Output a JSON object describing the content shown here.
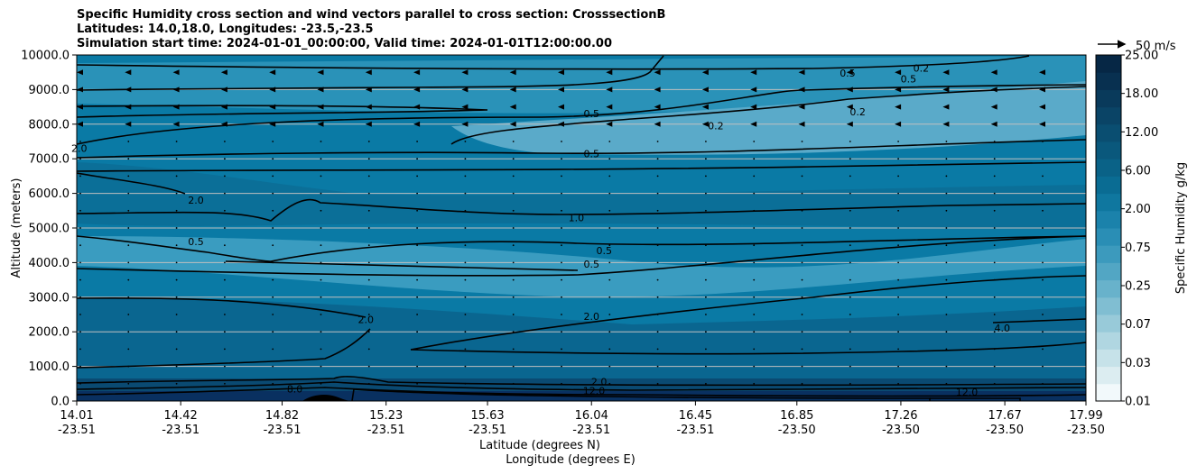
{
  "chart_data": {
    "type": "heatmap",
    "title_lines": [
      "Specific Humidity cross section and wind vectors parallel to cross section: CrosssectionB",
      "Latitudes: 14.0,18.0, Longitudes: -23.5,-23.5",
      "Simulation start time: 2024-01-01_00:00:00, Valid time: 2024-01-01T12:00:00.00"
    ],
    "ylabel": "Altitude (meters)",
    "xlabel_lines": [
      "Latitude (degrees N)",
      "Longitude (degrees E)"
    ],
    "ylim": [
      0,
      10000
    ],
    "y_ticks": [
      "0.0",
      "1000.0",
      "2000.0",
      "3000.0",
      "4000.0",
      "5000.0",
      "6000.0",
      "7000.0",
      "8000.0",
      "9000.0",
      "10000.0"
    ],
    "y_tick_values": [
      0,
      1000,
      2000,
      3000,
      4000,
      5000,
      6000,
      7000,
      8000,
      9000,
      10000
    ],
    "x_ticks": [
      {
        "lat": "14.01",
        "lon": "-23.51"
      },
      {
        "lat": "14.42",
        "lon": "-23.51"
      },
      {
        "lat": "14.82",
        "lon": "-23.51"
      },
      {
        "lat": "15.23",
        "lon": "-23.51"
      },
      {
        "lat": "15.63",
        "lon": "-23.51"
      },
      {
        "lat": "16.04",
        "lon": "-23.51"
      },
      {
        "lat": "16.45",
        "lon": "-23.51"
      },
      {
        "lat": "16.85",
        "lon": "-23.50"
      },
      {
        "lat": "17.26",
        "lon": "-23.50"
      },
      {
        "lat": "17.67",
        "lon": "-23.50"
      },
      {
        "lat": "17.99",
        "lon": "-23.50"
      }
    ],
    "x_tick_values": [
      14.01,
      14.42,
      14.82,
      15.23,
      15.63,
      16.04,
      16.45,
      16.85,
      17.26,
      17.67,
      17.99
    ],
    "xlim": [
      14.01,
      17.99
    ],
    "grid": "horizontal",
    "colorbar": {
      "label": "Specific Humidity g/kg",
      "tick_labels": [
        "0.01",
        "0.03",
        "0.07",
        "0.25",
        "0.75",
        "2.00",
        "6.00",
        "12.00",
        "18.00",
        "25.00"
      ],
      "colors": [
        "#f2f9fb",
        "#dcedf1",
        "#c6e2e9",
        "#b0d6e1",
        "#98cad9",
        "#80bed2",
        "#68b2cb",
        "#52a6c4",
        "#3c9abd",
        "#2a8eb5",
        "#1b82ab",
        "#0f779f",
        "#0a6c93",
        "#0a6287",
        "#0a587c",
        "#0a4e71",
        "#0a4466",
        "#093a5b",
        "#083050",
        "#062745"
      ]
    },
    "wind_reference": {
      "label": "50 m/s",
      "speed": 50
    },
    "contour_labels": [
      {
        "text": "0.5",
        "lat": 16.04,
        "alt": 8200
      },
      {
        "text": "0.5",
        "lat": 16.04,
        "alt": 7050
      },
      {
        "text": "0.2",
        "lat": 16.53,
        "alt": 7850
      },
      {
        "text": "0.5",
        "lat": 17.05,
        "alt": 9380
      },
      {
        "text": "0.5",
        "lat": 17.29,
        "alt": 9200
      },
      {
        "text": "0.2",
        "lat": 17.34,
        "alt": 9520
      },
      {
        "text": "0.2",
        "lat": 17.09,
        "alt": 8250
      },
      {
        "text": "2.0",
        "lat": 14.02,
        "alt": 7200
      },
      {
        "text": "2.0",
        "lat": 14.48,
        "alt": 5700
      },
      {
        "text": "0.5",
        "lat": 14.48,
        "alt": 4500
      },
      {
        "text": "1.0",
        "lat": 15.98,
        "alt": 5200
      },
      {
        "text": "0.5",
        "lat": 16.09,
        "alt": 4250
      },
      {
        "text": "0.5",
        "lat": 16.04,
        "alt": 3850
      },
      {
        "text": "2.0",
        "lat": 15.15,
        "alt": 2250
      },
      {
        "text": "2.0",
        "lat": 16.04,
        "alt": 2350
      },
      {
        "text": "4.0",
        "lat": 17.66,
        "alt": 2000
      },
      {
        "text": "2.0",
        "lat": 16.07,
        "alt": 450
      },
      {
        "text": "12.0",
        "lat": 16.05,
        "alt": 200
      },
      {
        "text": "8.0",
        "lat": 14.87,
        "alt": 250
      },
      {
        "text": "12.0",
        "lat": 17.52,
        "alt": 150
      }
    ]
  }
}
